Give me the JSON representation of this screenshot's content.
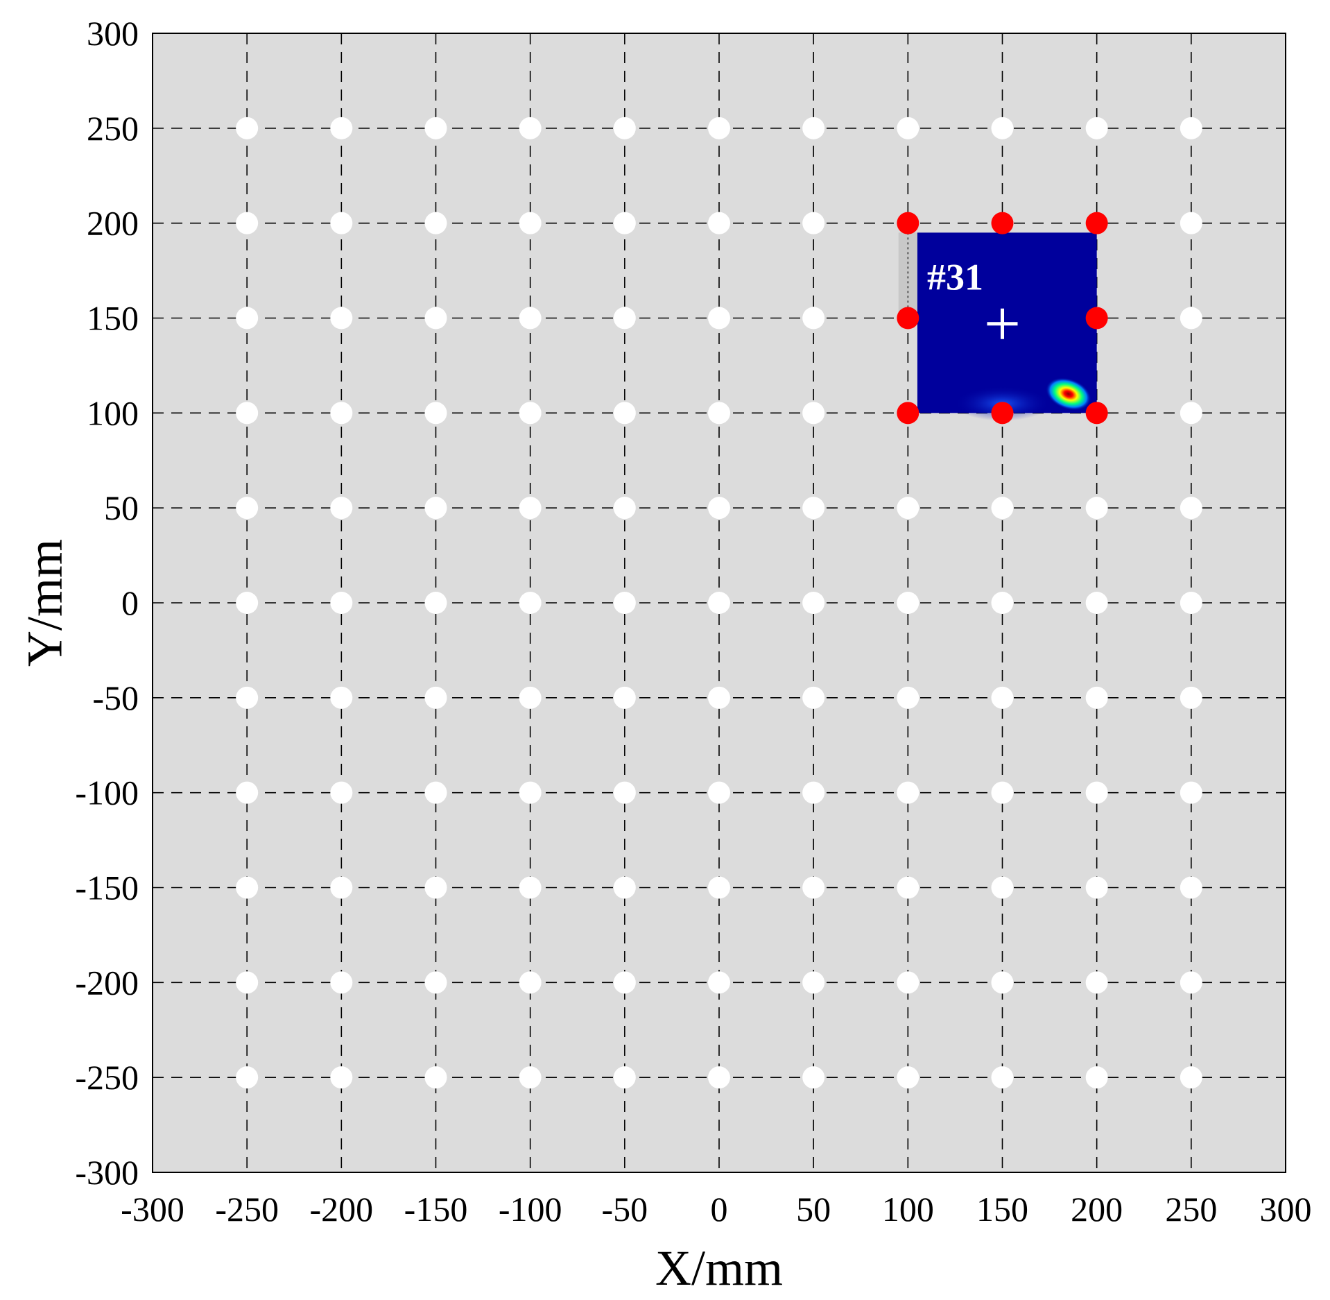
{
  "chart_data": {
    "type": "scatter",
    "title": "",
    "xlabel": "X/mm",
    "ylabel": "Y/mm",
    "xlim": [
      -300,
      300
    ],
    "ylim": [
      -300,
      300
    ],
    "xticks": [
      -300,
      -250,
      -200,
      -150,
      -100,
      -50,
      0,
      50,
      100,
      150,
      200,
      250,
      300
    ],
    "yticks": [
      -300,
      -250,
      -200,
      -150,
      -100,
      -50,
      0,
      50,
      100,
      150,
      200,
      250,
      300
    ],
    "grid": true,
    "grid_style": "dashed",
    "background_color": "#dcdcdc",
    "sensor_grid": {
      "x": [
        -250,
        -200,
        -150,
        -100,
        -50,
        0,
        50,
        100,
        150,
        200,
        250
      ],
      "y": [
        -250,
        -200,
        -150,
        -100,
        -50,
        0,
        50,
        100,
        150,
        200,
        250
      ],
      "color": "#ffffff"
    },
    "active_sensors": {
      "color": "#ff0000",
      "points": [
        {
          "x": 100,
          "y": 200
        },
        {
          "x": 150,
          "y": 200
        },
        {
          "x": 200,
          "y": 200
        },
        {
          "x": 100,
          "y": 150
        },
        {
          "x": 200,
          "y": 150
        },
        {
          "x": 100,
          "y": 100
        },
        {
          "x": 150,
          "y": 100
        },
        {
          "x": 200,
          "y": 100
        }
      ]
    },
    "heatmap_inset": {
      "label": "#31",
      "x_range": [
        105,
        200
      ],
      "y_range": [
        100,
        195
      ],
      "base_color": "#00009c",
      "center_marker": {
        "x": 150,
        "y": 147
      },
      "hotspot": {
        "x": 185,
        "y": 110
      }
    }
  }
}
